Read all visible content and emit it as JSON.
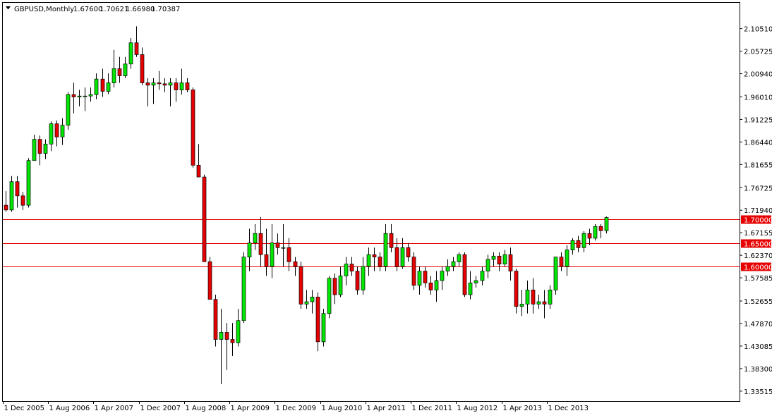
{
  "header": {
    "symbol": "GBPUSD,Monthly",
    "open": "1.67600",
    "high": "1.70621",
    "low": "1.66980",
    "close": "1.70387"
  },
  "colors": {
    "background": "#ffffff",
    "bull": "#00e600",
    "bear": "#e60000",
    "wick": "#000000",
    "level_line": "#e60000",
    "level_label_bg": "#e60000",
    "level_label_text": "#ffffff"
  },
  "chart_data": {
    "type": "candlestick",
    "title": "",
    "ylim": [
      1.32,
      2.13
    ],
    "y_ticks": [
      "2.10510",
      "2.05725",
      "2.00940",
      "1.96010",
      "1.91225",
      "1.86440",
      "1.81655",
      "1.76725",
      "1.71940",
      "1.67155",
      "1.62370",
      "1.57585",
      "1.52655",
      "1.47870",
      "1.43085",
      "1.38300",
      "1.33515"
    ],
    "x_tick_labels": [
      "1 Dec 2005",
      "1 Aug 2006",
      "1 Apr 2007",
      "1 Dec 2007",
      "1 Aug 2008",
      "1 Apr 2009",
      "1 Dec 2009",
      "1 Aug 2010",
      "1 Apr 2011",
      "1 Dec 2011",
      "1 Aug 2012",
      "1 Apr 2013",
      "1 Dec 2013"
    ],
    "x_tick_index": [
      0,
      8,
      16,
      24,
      32,
      40,
      48,
      56,
      64,
      72,
      80,
      88,
      96
    ],
    "levels": [
      {
        "value": 1.7,
        "label": "1.70000"
      },
      {
        "value": 1.65,
        "label": "1.65000"
      },
      {
        "value": 1.6,
        "label": "1.60000"
      }
    ],
    "candles": [
      [
        1.73,
        1.76,
        1.716,
        1.72
      ],
      [
        1.72,
        1.792,
        1.716,
        1.78
      ],
      [
        1.78,
        1.792,
        1.725,
        1.75
      ],
      [
        1.75,
        1.758,
        1.72,
        1.73
      ],
      [
        1.73,
        1.83,
        1.725,
        1.825
      ],
      [
        1.825,
        1.88,
        1.825,
        1.87
      ],
      [
        1.87,
        1.878,
        1.815,
        1.84
      ],
      [
        1.84,
        1.87,
        1.828,
        1.86
      ],
      [
        1.86,
        1.908,
        1.845,
        1.903
      ],
      [
        1.903,
        1.91,
        1.855,
        1.875
      ],
      [
        1.875,
        1.915,
        1.858,
        1.9
      ],
      [
        1.9,
        1.97,
        1.89,
        1.965
      ],
      [
        1.965,
        1.99,
        1.925,
        1.96
      ],
      [
        1.96,
        1.975,
        1.94,
        1.962
      ],
      [
        1.962,
        1.98,
        1.93,
        1.962
      ],
      [
        1.962,
        1.98,
        1.95,
        1.965
      ],
      [
        1.965,
        2.01,
        1.955,
        1.998
      ],
      [
        1.998,
        2.02,
        1.96,
        1.972
      ],
      [
        1.972,
        2.01,
        1.966,
        1.99
      ],
      [
        1.99,
        2.06,
        1.98,
        2.02
      ],
      [
        2.02,
        2.045,
        1.99,
        2.005
      ],
      [
        2.005,
        2.045,
        2.0,
        2.03
      ],
      [
        2.03,
        2.085,
        2.02,
        2.075
      ],
      [
        2.075,
        2.11,
        2.045,
        2.05
      ],
      [
        2.05,
        2.065,
        1.985,
        1.99
      ],
      [
        1.99,
        2.0,
        1.94,
        1.985
      ],
      [
        1.985,
        2.0,
        1.945,
        1.99
      ],
      [
        1.99,
        2.015,
        1.975,
        1.988
      ],
      [
        1.988,
        2.0,
        1.97,
        1.985
      ],
      [
        1.985,
        2.0,
        1.94,
        1.99
      ],
      [
        1.99,
        2.0,
        1.95,
        1.975
      ],
      [
        1.975,
        2.02,
        1.965,
        1.99
      ],
      [
        1.99,
        2.0,
        1.97,
        1.975
      ],
      [
        1.975,
        1.98,
        1.81,
        1.815
      ],
      [
        1.815,
        1.86,
        1.79,
        1.79
      ],
      [
        1.79,
        1.795,
        1.61,
        1.61
      ],
      [
        1.61,
        1.62,
        1.53,
        1.53
      ],
      [
        1.53,
        1.54,
        1.43,
        1.445
      ],
      [
        1.445,
        1.51,
        1.35,
        1.46
      ],
      [
        1.46,
        1.48,
        1.38,
        1.445
      ],
      [
        1.445,
        1.48,
        1.41,
        1.438
      ],
      [
        1.438,
        1.51,
        1.43,
        1.485
      ],
      [
        1.485,
        1.63,
        1.48,
        1.62
      ],
      [
        1.62,
        1.68,
        1.59,
        1.65
      ],
      [
        1.65,
        1.69,
        1.635,
        1.67
      ],
      [
        1.67,
        1.705,
        1.6,
        1.625
      ],
      [
        1.625,
        1.68,
        1.58,
        1.6
      ],
      [
        1.6,
        1.69,
        1.575,
        1.65
      ],
      [
        1.65,
        1.67,
        1.625,
        1.64
      ],
      [
        1.64,
        1.69,
        1.6,
        1.64
      ],
      [
        1.64,
        1.66,
        1.59,
        1.61
      ],
      [
        1.61,
        1.62,
        1.58,
        1.6
      ],
      [
        1.6,
        1.61,
        1.51,
        1.52
      ],
      [
        1.52,
        1.55,
        1.51,
        1.525
      ],
      [
        1.525,
        1.55,
        1.5,
        1.535
      ],
      [
        1.535,
        1.545,
        1.42,
        1.44
      ],
      [
        1.44,
        1.51,
        1.43,
        1.5
      ],
      [
        1.5,
        1.58,
        1.49,
        1.575
      ],
      [
        1.575,
        1.585,
        1.52,
        1.54
      ],
      [
        1.54,
        1.6,
        1.535,
        1.58
      ],
      [
        1.58,
        1.62,
        1.56,
        1.605
      ],
      [
        1.605,
        1.62,
        1.58,
        1.59
      ],
      [
        1.59,
        1.6,
        1.54,
        1.55
      ],
      [
        1.55,
        1.62,
        1.54,
        1.6
      ],
      [
        1.6,
        1.64,
        1.58,
        1.625
      ],
      [
        1.625,
        1.64,
        1.59,
        1.62
      ],
      [
        1.62,
        1.63,
        1.59,
        1.6
      ],
      [
        1.6,
        1.69,
        1.59,
        1.67
      ],
      [
        1.67,
        1.69,
        1.63,
        1.64
      ],
      [
        1.64,
        1.66,
        1.59,
        1.6
      ],
      [
        1.6,
        1.66,
        1.595,
        1.64
      ],
      [
        1.64,
        1.65,
        1.61,
        1.62
      ],
      [
        1.62,
        1.63,
        1.55,
        1.56
      ],
      [
        1.56,
        1.6,
        1.54,
        1.59
      ],
      [
        1.59,
        1.6,
        1.555,
        1.565
      ],
      [
        1.565,
        1.58,
        1.54,
        1.55
      ],
      [
        1.55,
        1.59,
        1.525,
        1.57
      ],
      [
        1.57,
        1.6,
        1.55,
        1.59
      ],
      [
        1.59,
        1.615,
        1.58,
        1.6
      ],
      [
        1.6,
        1.62,
        1.59,
        1.61
      ],
      [
        1.61,
        1.63,
        1.6,
        1.625
      ],
      [
        1.625,
        1.63,
        1.535,
        1.54
      ],
      [
        1.54,
        1.59,
        1.53,
        1.565
      ],
      [
        1.565,
        1.58,
        1.555,
        1.57
      ],
      [
        1.57,
        1.6,
        1.56,
        1.59
      ],
      [
        1.59,
        1.625,
        1.575,
        1.615
      ],
      [
        1.615,
        1.63,
        1.6,
        1.622
      ],
      [
        1.622,
        1.63,
        1.59,
        1.605
      ],
      [
        1.605,
        1.635,
        1.6,
        1.625
      ],
      [
        1.625,
        1.64,
        1.57,
        1.59
      ],
      [
        1.59,
        1.595,
        1.5,
        1.515
      ],
      [
        1.515,
        1.55,
        1.495,
        1.52
      ],
      [
        1.52,
        1.57,
        1.5,
        1.55
      ],
      [
        1.55,
        1.575,
        1.5,
        1.52
      ],
      [
        1.52,
        1.54,
        1.51,
        1.525
      ],
      [
        1.525,
        1.55,
        1.49,
        1.52
      ],
      [
        1.52,
        1.56,
        1.51,
        1.55
      ],
      [
        1.55,
        1.62,
        1.54,
        1.62
      ],
      [
        1.62,
        1.63,
        1.59,
        1.6
      ],
      [
        1.6,
        1.645,
        1.58,
        1.635
      ],
      [
        1.635,
        1.66,
        1.625,
        1.655
      ],
      [
        1.655,
        1.665,
        1.63,
        1.64
      ],
      [
        1.64,
        1.675,
        1.63,
        1.67
      ],
      [
        1.67,
        1.68,
        1.645,
        1.66
      ],
      [
        1.66,
        1.69,
        1.655,
        1.685
      ],
      [
        1.685,
        1.69,
        1.66,
        1.676
      ],
      [
        1.676,
        1.706,
        1.67,
        1.704
      ]
    ]
  }
}
